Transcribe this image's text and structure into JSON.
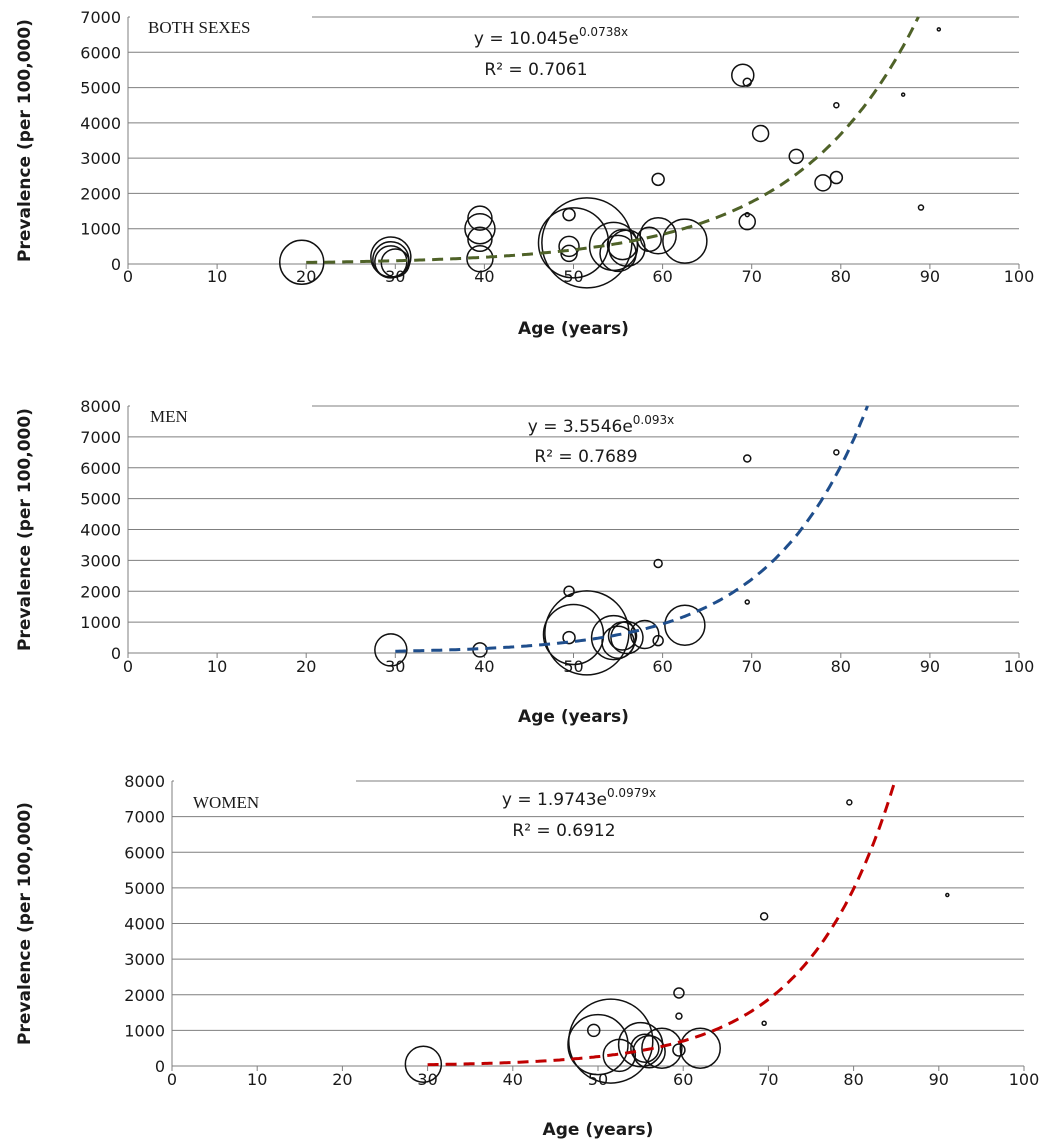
{
  "chart_data": [
    {
      "type": "scatter",
      "panel_label": "BOTH SEXES",
      "xlabel": "Age (years)",
      "ylabel": "Prevalence (per 100,000)",
      "xlim": [
        0,
        100
      ],
      "ylim": [
        0,
        7000
      ],
      "x_ticks": [
        0,
        10,
        20,
        30,
        40,
        50,
        60,
        70,
        80,
        90,
        100
      ],
      "y_ticks": [
        0,
        1000,
        2000,
        3000,
        4000,
        5000,
        6000,
        7000
      ],
      "grid": "horizontal",
      "trendline": {
        "type": "exponential",
        "a": 10.045,
        "b": 0.0738,
        "x_range": [
          20,
          90
        ],
        "color": "#4f6228",
        "equation_base": "y = 10.045e",
        "equation_exponent": "0.0738x",
        "r2_label": "R² = 0.7061"
      },
      "points": [
        {
          "x": 19.5,
          "y": 50,
          "size": 22
        },
        {
          "x": 29.5,
          "y": 200,
          "size": 20
        },
        {
          "x": 29.5,
          "y": 120,
          "size": 18
        },
        {
          "x": 29.5,
          "y": 60,
          "size": 16
        },
        {
          "x": 30,
          "y": 30,
          "size": 14
        },
        {
          "x": 39.5,
          "y": 1300,
          "size": 12
        },
        {
          "x": 39.5,
          "y": 1000,
          "size": 15
        },
        {
          "x": 39.5,
          "y": 700,
          "size": 12
        },
        {
          "x": 39.5,
          "y": 150,
          "size": 13
        },
        {
          "x": 49.5,
          "y": 1400,
          "size": 6
        },
        {
          "x": 49.5,
          "y": 500,
          "size": 10
        },
        {
          "x": 49.5,
          "y": 300,
          "size": 8
        },
        {
          "x": 50,
          "y": 600,
          "size": 35
        },
        {
          "x": 51.5,
          "y": 600,
          "size": 45
        },
        {
          "x": 54.5,
          "y": 500,
          "size": 24
        },
        {
          "x": 55,
          "y": 300,
          "size": 18
        },
        {
          "x": 55.5,
          "y": 550,
          "size": 15
        },
        {
          "x": 56,
          "y": 450,
          "size": 18
        },
        {
          "x": 58.5,
          "y": 700,
          "size": 12
        },
        {
          "x": 59.5,
          "y": 800,
          "size": 18
        },
        {
          "x": 62.5,
          "y": 650,
          "size": 22
        },
        {
          "x": 59.5,
          "y": 2400,
          "size": 6
        },
        {
          "x": 69,
          "y": 5350,
          "size": 11
        },
        {
          "x": 69.5,
          "y": 5150,
          "size": 4
        },
        {
          "x": 71,
          "y": 3700,
          "size": 8
        },
        {
          "x": 69.5,
          "y": 1400,
          "size": 2
        },
        {
          "x": 69.5,
          "y": 1200,
          "size": 8
        },
        {
          "x": 75,
          "y": 3050,
          "size": 7
        },
        {
          "x": 78,
          "y": 2300,
          "size": 8
        },
        {
          "x": 79.5,
          "y": 2450,
          "size": 6
        },
        {
          "x": 79.5,
          "y": 4500,
          "size": 2.5
        },
        {
          "x": 87,
          "y": 4800,
          "size": 1.5
        },
        {
          "x": 89,
          "y": 1600,
          "size": 2.5
        },
        {
          "x": 91,
          "y": 6650,
          "size": 1.5
        }
      ]
    },
    {
      "type": "scatter",
      "panel_label": "MEN",
      "xlabel": "Age (years)",
      "ylabel": "Prevalence (per 100,000)",
      "xlim": [
        0,
        100
      ],
      "ylim": [
        0,
        8000
      ],
      "x_ticks": [
        0,
        10,
        20,
        30,
        40,
        50,
        60,
        70,
        80,
        90,
        100
      ],
      "y_ticks": [
        0,
        1000,
        2000,
        3000,
        4000,
        5000,
        6000,
        7000,
        8000
      ],
      "grid": "horizontal",
      "trendline": {
        "type": "exponential",
        "a": 3.5546,
        "b": 0.093,
        "x_range": [
          30,
          83
        ],
        "color": "#1f4e8c",
        "equation_base": "y = 3.5546e",
        "equation_exponent": "0.093x",
        "r2_label": "R² = 0.7689"
      },
      "points": [
        {
          "x": 29.5,
          "y": 100,
          "size": 16
        },
        {
          "x": 39.5,
          "y": 100,
          "size": 7
        },
        {
          "x": 49.5,
          "y": 2000,
          "size": 5
        },
        {
          "x": 49.5,
          "y": 500,
          "size": 6
        },
        {
          "x": 50,
          "y": 600,
          "size": 30
        },
        {
          "x": 51.5,
          "y": 650,
          "size": 42
        },
        {
          "x": 54.5,
          "y": 500,
          "size": 22
        },
        {
          "x": 55,
          "y": 350,
          "size": 16
        },
        {
          "x": 55.5,
          "y": 550,
          "size": 14
        },
        {
          "x": 56,
          "y": 500,
          "size": 16
        },
        {
          "x": 58,
          "y": 600,
          "size": 14
        },
        {
          "x": 59.5,
          "y": 400,
          "size": 5
        },
        {
          "x": 62.5,
          "y": 900,
          "size": 20
        },
        {
          "x": 59.5,
          "y": 2900,
          "size": 4
        },
        {
          "x": 69.5,
          "y": 6300,
          "size": 3.5
        },
        {
          "x": 69.5,
          "y": 1650,
          "size": 2
        },
        {
          "x": 79.5,
          "y": 6500,
          "size": 2.5
        }
      ]
    },
    {
      "type": "scatter",
      "panel_label": "WOMEN",
      "xlabel": "Age (years)",
      "ylabel": "Prevalence (per 100,000)",
      "xlim": [
        0,
        100
      ],
      "ylim": [
        0,
        8000
      ],
      "x_ticks": [
        0,
        10,
        20,
        30,
        40,
        50,
        60,
        70,
        80,
        90,
        100
      ],
      "y_ticks": [
        0,
        1000,
        2000,
        3000,
        4000,
        5000,
        6000,
        7000,
        8000
      ],
      "grid": "horizontal",
      "trendline": {
        "type": "exponential",
        "a": 1.9743,
        "b": 0.0979,
        "x_range": [
          30,
          85
        ],
        "color": "#c00000",
        "equation_base": "y = 1.9743e",
        "equation_exponent": "0.0979x",
        "r2_label": "R² = 0.6912"
      },
      "points": [
        {
          "x": 29.5,
          "y": 50,
          "size": 18
        },
        {
          "x": 49.5,
          "y": 1000,
          "size": 6
        },
        {
          "x": 50,
          "y": 600,
          "size": 30
        },
        {
          "x": 51.5,
          "y": 700,
          "size": 42
        },
        {
          "x": 52.5,
          "y": 300,
          "size": 16
        },
        {
          "x": 55,
          "y": 600,
          "size": 22
        },
        {
          "x": 55.5,
          "y": 500,
          "size": 14
        },
        {
          "x": 56,
          "y": 400,
          "size": 16
        },
        {
          "x": 57.5,
          "y": 500,
          "size": 20
        },
        {
          "x": 59.5,
          "y": 450,
          "size": 6
        },
        {
          "x": 62,
          "y": 500,
          "size": 20
        },
        {
          "x": 59.5,
          "y": 2050,
          "size": 5
        },
        {
          "x": 59.5,
          "y": 1400,
          "size": 3
        },
        {
          "x": 69.5,
          "y": 4200,
          "size": 3.5
        },
        {
          "x": 69.5,
          "y": 1200,
          "size": 2
        },
        {
          "x": 79.5,
          "y": 7400,
          "size": 2.5
        },
        {
          "x": 91,
          "y": 4800,
          "size": 1.5
        }
      ]
    }
  ]
}
